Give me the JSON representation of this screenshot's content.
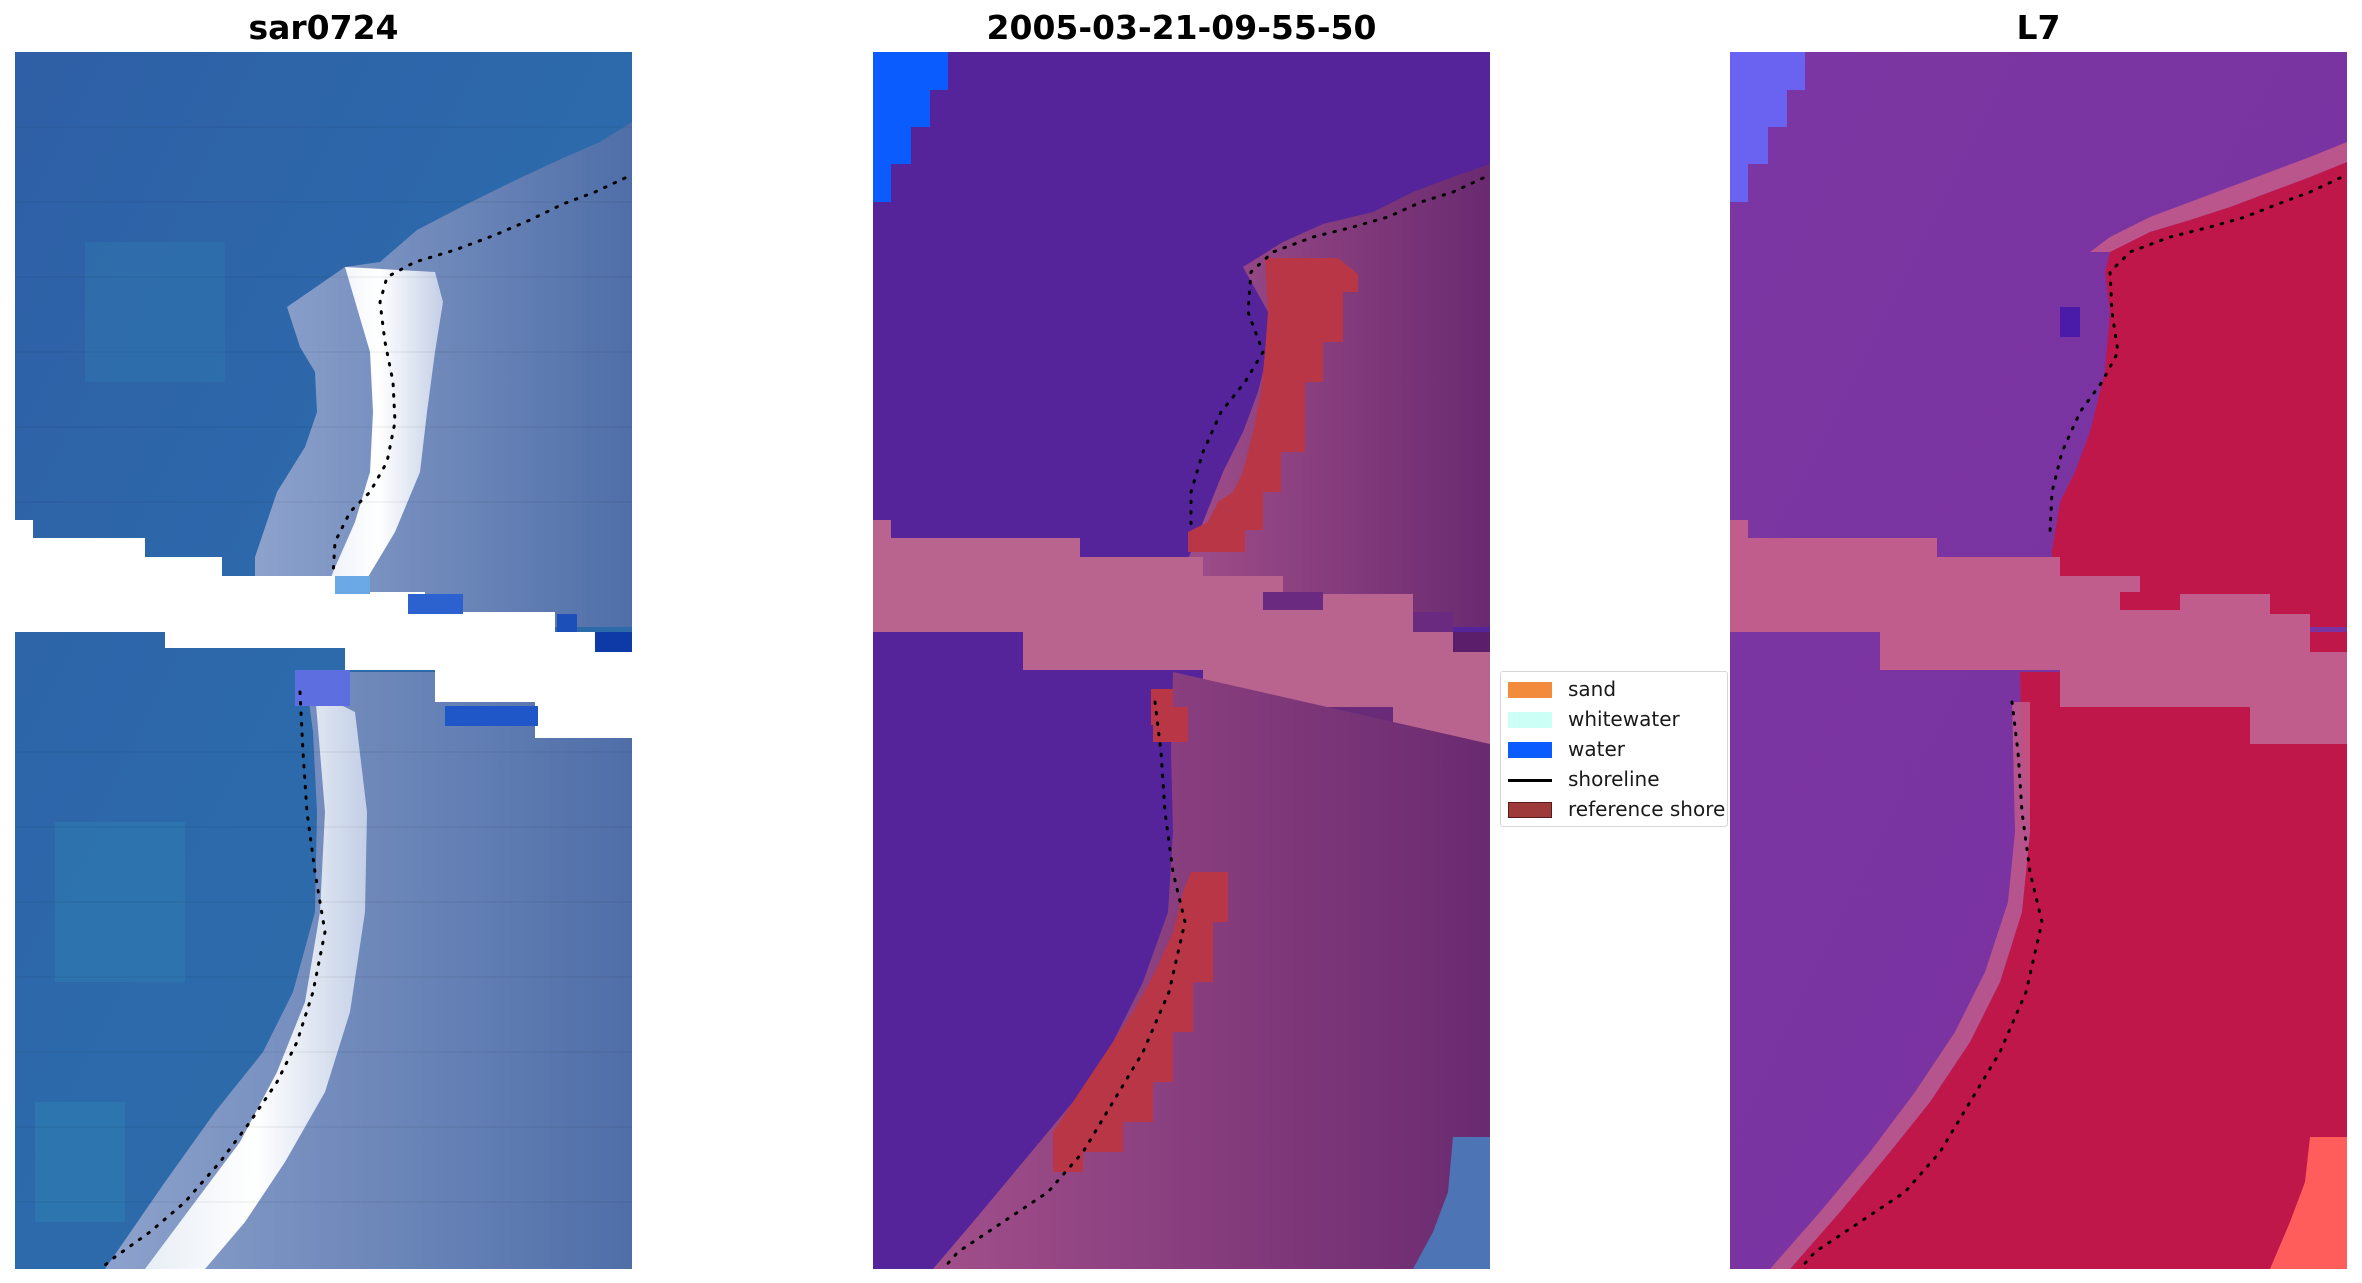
{
  "panels": {
    "left_title": "sar0724",
    "mid_title": "2005-03-21-09-55-50",
    "right_title": "L7"
  },
  "legend": {
    "items": [
      {
        "label": "sand",
        "color": "#f28c3c",
        "kind": "patch"
      },
      {
        "label": "whitewater",
        "color": "#ccfff5",
        "kind": "patch"
      },
      {
        "label": "water",
        "color": "#0a5cff",
        "kind": "patch"
      },
      {
        "label": "shoreline",
        "color": "#000000",
        "kind": "line"
      },
      {
        "label": "reference shoreline",
        "color": "#9e3a3a",
        "kind": "patch"
      }
    ]
  },
  "colors": {
    "rgb_water": "#2f64a8",
    "rgb_bright_beach": "#f2f6fb",
    "rgb_land": "#6f87b8",
    "class_water": "#55249a",
    "class_sand_tint": "#8e3c7a",
    "class_nodata_band": "#b9648f",
    "class_reference": "#b83646",
    "l7_water": "#7a33a1",
    "l7_land": "#c0174a",
    "l7_band": "#c15d8c"
  }
}
